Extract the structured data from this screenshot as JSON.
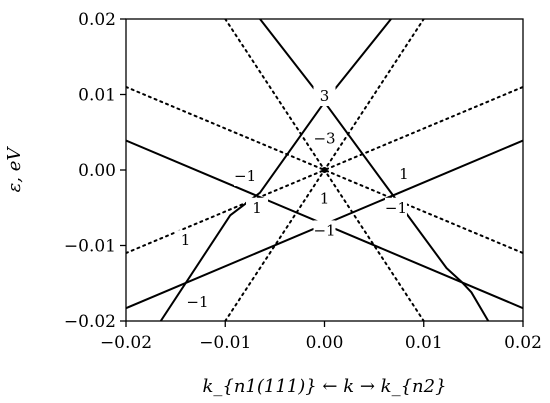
{
  "chart_data": {
    "type": "line",
    "xlabel": "k_{n1(111)} ← k → k_{n2}",
    "ylabel": "ε, eV",
    "xlim": [
      -0.02,
      0.02
    ],
    "ylim": [
      -0.02,
      0.02
    ],
    "x_ticks": [
      "−0.02",
      "−0.01",
      "0.00",
      "0.01",
      "0.02"
    ],
    "y_ticks": [
      "0.02",
      "0.01",
      "0.00",
      "−0.01",
      "−0.02"
    ],
    "grid": false,
    "series": [
      {
        "style": "solid",
        "points": [
          [
            -0.02,
            0.0039
          ],
          [
            0.02,
            -0.0183
          ]
        ]
      },
      {
        "style": "solid",
        "points": [
          [
            -0.02,
            -0.0183
          ],
          [
            0.02,
            0.0039
          ]
        ]
      },
      {
        "style": "solid",
        "points": [
          [
            -0.0165,
            -0.02
          ],
          [
            -0.0095,
            -0.006
          ],
          [
            -0.0065,
            -0.003
          ],
          [
            0.0,
            0.009
          ],
          [
            0.0067,
            0.02
          ]
        ]
      },
      {
        "style": "solid",
        "points": [
          [
            -0.0065,
            0.02
          ],
          [
            0.0,
            0.009
          ],
          [
            0.0067,
            -0.003
          ],
          [
            0.0123,
            -0.013
          ],
          [
            0.0138,
            -0.0148
          ],
          [
            0.0148,
            -0.0162
          ],
          [
            0.0165,
            -0.02
          ]
        ]
      },
      {
        "style": "dotted",
        "points": [
          [
            -0.02,
            -0.011
          ],
          [
            0.02,
            0.011
          ]
        ]
      },
      {
        "style": "dotted",
        "points": [
          [
            -0.02,
            0.011
          ],
          [
            0.02,
            -0.011
          ]
        ]
      },
      {
        "style": "dotted",
        "points": [
          [
            -0.01,
            -0.02
          ],
          [
            0.01,
            0.02
          ]
        ]
      },
      {
        "style": "dotted",
        "points": [
          [
            -0.01,
            0.02
          ],
          [
            0.01,
            -0.02
          ]
        ]
      }
    ],
    "annotations": [
      {
        "text": "3",
        "x": 0.0,
        "y": 0.0098
      },
      {
        "text": "−3",
        "x": 0.0,
        "y": 0.0042
      },
      {
        "text": "−1",
        "x": -0.008,
        "y": -0.0008
      },
      {
        "text": "1",
        "x": 0.008,
        "y": -0.0005
      },
      {
        "text": "1",
        "x": -0.0068,
        "y": -0.005
      },
      {
        "text": "1",
        "x": 0.0,
        "y": -0.0038
      },
      {
        "text": "−1",
        "x": 0.0072,
        "y": -0.005
      },
      {
        "text": "−1",
        "x": 0.0,
        "y": -0.008
      },
      {
        "text": "1",
        "x": -0.014,
        "y": -0.0093
      },
      {
        "text": "−1",
        "x": -0.0128,
        "y": -0.0175
      }
    ],
    "markers": [
      {
        "x": 0.0,
        "y": 0.0
      }
    ]
  }
}
